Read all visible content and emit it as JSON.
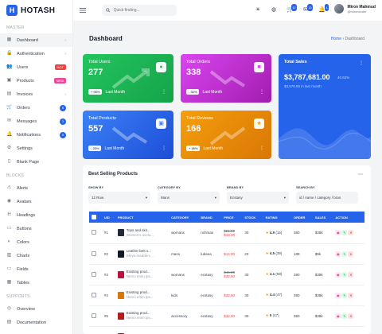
{
  "app": {
    "logo_letter": "H",
    "logo_text": "HOTASH"
  },
  "sidebar": {
    "sections": [
      {
        "title": "MASTER"
      },
      {
        "title": "BLOCKS"
      },
      {
        "title": "SUPPORTS"
      }
    ],
    "master_items": [
      {
        "label": "Dashboard",
        "icon": "grid-icon",
        "caret": "›"
      },
      {
        "label": "Authentication",
        "icon": "lock-icon",
        "caret": "›"
      },
      {
        "label": "Users",
        "icon": "users-icon",
        "badge": "HOT"
      },
      {
        "label": "Products",
        "icon": "box-icon",
        "badge": "NEW"
      },
      {
        "label": "Invoices",
        "icon": "invoice-icon",
        "caret": "›"
      },
      {
        "label": "Orders",
        "icon": "cart-icon",
        "count": "5"
      },
      {
        "label": "Messages",
        "icon": "message-icon",
        "count": "3"
      },
      {
        "label": "Notifications",
        "icon": "bell-icon",
        "count": "9"
      },
      {
        "label": "Settings",
        "icon": "gear-icon"
      },
      {
        "label": "Blank Page",
        "icon": "file-icon"
      }
    ],
    "block_items": [
      {
        "label": "Alerts",
        "icon": "alert-icon"
      },
      {
        "label": "Avatars",
        "icon": "avatar-icon"
      },
      {
        "label": "Headings",
        "icon": "heading-icon"
      },
      {
        "label": "Buttons",
        "icon": "button-icon"
      },
      {
        "label": "Colors",
        "icon": "palette-icon"
      },
      {
        "label": "Charts",
        "icon": "chart-icon"
      },
      {
        "label": "Fields",
        "icon": "field-icon"
      },
      {
        "label": "Tables",
        "icon": "table-icon"
      }
    ],
    "support_items": [
      {
        "label": "Overview",
        "icon": "overview-icon"
      },
      {
        "label": "Documentation",
        "icon": "doc-icon"
      }
    ]
  },
  "header": {
    "search_placeholder": "Quick finding...",
    "badges": {
      "cart": "12",
      "mail": "13",
      "bell": "4"
    },
    "user_name": "Miron Mahmud",
    "user_handle": "@mironcoder"
  },
  "page": {
    "title": "Dashboard",
    "crumb_home": "Home",
    "crumb_sep": "›",
    "crumb_current": "Dashboard"
  },
  "cards": {
    "users": {
      "title": "Total Users",
      "value": "277",
      "pill": "+ 95%",
      "foot": "Last Month",
      "color": "#22c55e"
    },
    "orders": {
      "title": "Total Orders",
      "value": "338",
      "pill": "- 30%",
      "foot": "Last Month",
      "color": "#d946ef"
    },
    "sales": {
      "title": "Total Sales",
      "value": "$3,787,681.00",
      "pct": "40.63%",
      "sub": "$3,578.90 in last month",
      "color": "#2563eb"
    },
    "products": {
      "title": "Total Products",
      "value": "557",
      "pill": "- 25%",
      "foot": "Last Month",
      "color": "#3b82f6"
    },
    "reviews": {
      "title": "Total Reviews",
      "value": "166",
      "pill": "+ 45%",
      "foot": "Last Month",
      "color": "#f59e0b"
    }
  },
  "table_section": {
    "title": "Best Selling Products",
    "filters": [
      {
        "label": "SHOW BY",
        "value": "12 Row"
      },
      {
        "label": "CATEGORY BY",
        "value": "Mans"
      },
      {
        "label": "BRAND BY",
        "value": "Ecstasy"
      },
      {
        "label": "SEARCH BY",
        "value": "id / name / category / bran"
      }
    ],
    "headers": [
      "UID",
      "PRODUCT",
      "CATEGORY",
      "BRAND",
      "PRICE",
      "STOCK",
      "RATING",
      "ORDER",
      "SALES",
      "ACTION"
    ],
    "rows": [
      {
        "uid": "#1",
        "name": "Tops and skir...",
        "sub": "Women's exclu...",
        "category": "womans",
        "brand": "richman",
        "old": "$21.00",
        "price": "$18.00",
        "stock": "30",
        "rating": "4.9",
        "rcount": "(16)",
        "order": "380",
        "sales": "$38k",
        "color": "#1f2937"
      },
      {
        "uid": "#2",
        "name": "Leather belt s...",
        "sub": "Steve madden ...",
        "category": "mans",
        "brand": "lubana",
        "old": "",
        "price": "$14.00",
        "stock": "23",
        "rating": "4.5",
        "rcount": "(39)",
        "order": "189",
        "sales": "$9k",
        "color": "#111827"
      },
      {
        "uid": "#3",
        "name": "Existing prod...",
        "sub": "Nemo enim ips...",
        "category": "womans",
        "brand": "ecstasy",
        "old": "$44.00",
        "price": "$32.00",
        "stock": "30",
        "rating": "4.1",
        "rcount": "(68)",
        "order": "380",
        "sales": "$38k",
        "color": "#be123c"
      },
      {
        "uid": "#4",
        "name": "Existing prod...",
        "sub": "Nemo enim ips...",
        "category": "kids",
        "brand": "ecstasy",
        "old": "",
        "price": "$32.00",
        "stock": "30",
        "rating": "4.4",
        "rcount": "(47)",
        "order": "380",
        "sales": "$38k",
        "color": "#d97706"
      },
      {
        "uid": "#5",
        "name": "Existing prod...",
        "sub": "Nemo enim ips...",
        "category": "accessory",
        "brand": "ecstasy",
        "old": "",
        "price": "$32.00",
        "stock": "30",
        "rating": "5",
        "rcount": "(47)",
        "order": "380",
        "sales": "$38k",
        "color": "#b91c1c"
      },
      {
        "uid": "",
        "name": "Existing prod...",
        "sub": "",
        "category": "",
        "brand": "",
        "old": "",
        "price": "",
        "stock": "",
        "rating": "",
        "rcount": "",
        "order": "",
        "sales": "",
        "color": "#7f1d1d"
      }
    ]
  }
}
